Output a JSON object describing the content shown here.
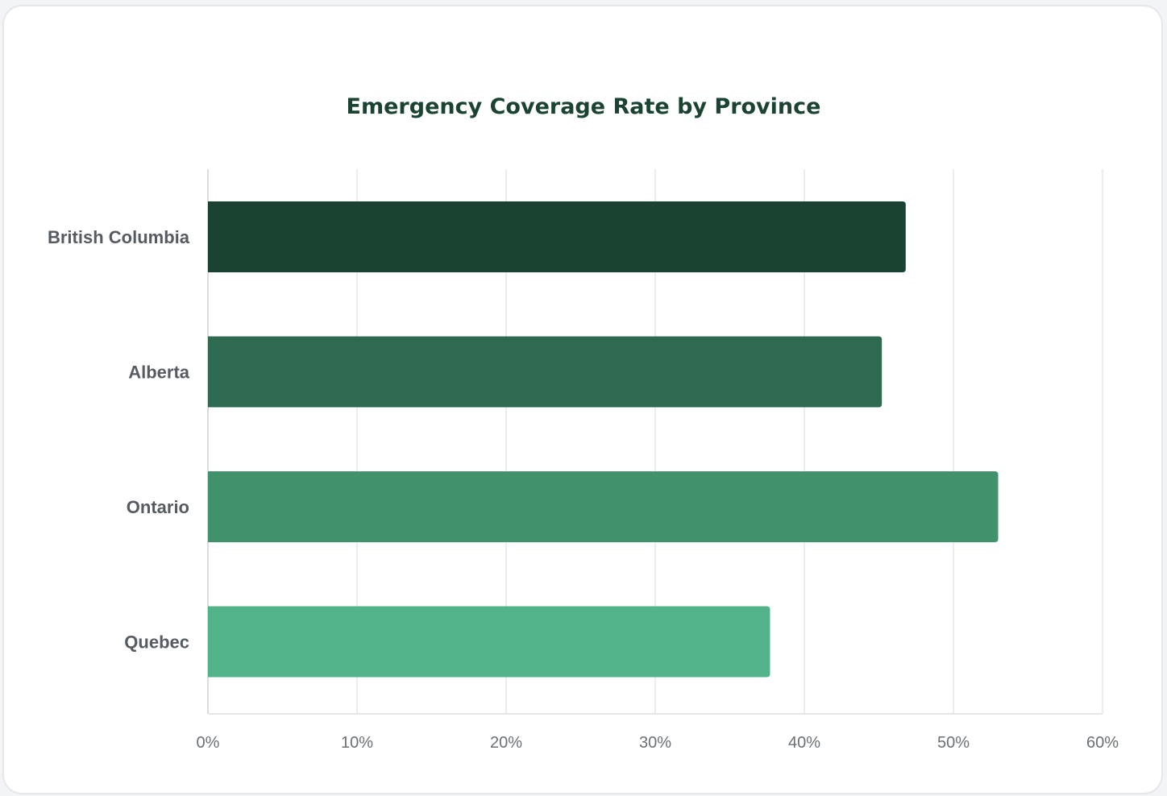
{
  "chart_data": {
    "type": "bar",
    "orientation": "horizontal",
    "title": "Emergency Coverage Rate by Province",
    "categories": [
      "British Columbia",
      "Alberta",
      "Ontario",
      "Quebec"
    ],
    "values": [
      46.8,
      45.2,
      53.0,
      37.7
    ],
    "value_unit": "%",
    "xlim": [
      0,
      60
    ],
    "x_ticks": [
      "0%",
      "10%",
      "20%",
      "30%",
      "40%",
      "50%",
      "60%"
    ],
    "xlabel": "",
    "ylabel": "",
    "grid": true,
    "legend": "none",
    "colors": [
      "#1b4332",
      "#2d6a4f",
      "#40916c",
      "#52b28a"
    ]
  }
}
